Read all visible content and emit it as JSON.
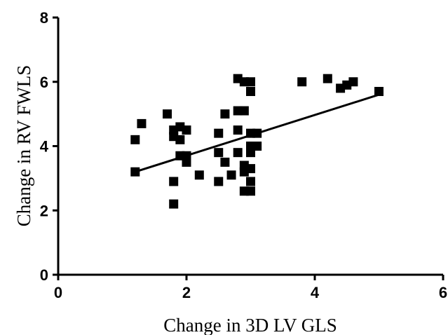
{
  "chart_data": {
    "type": "scatter",
    "title": "",
    "xlabel": "Change in 3D LV GLS",
    "ylabel": "Change in RV FWLS",
    "xlim": [
      0,
      6
    ],
    "ylim": [
      0,
      8
    ],
    "xticks": [
      "0",
      "2",
      "4",
      "6"
    ],
    "yticks": [
      "0",
      "2",
      "4",
      "6",
      "8"
    ],
    "grid": false,
    "legend": "none",
    "marker": "square",
    "marker_color": "#000000",
    "points": [
      {
        "x": 1.2,
        "y": 3.2
      },
      {
        "x": 1.2,
        "y": 4.2
      },
      {
        "x": 1.3,
        "y": 4.7
      },
      {
        "x": 1.7,
        "y": 5.0
      },
      {
        "x": 1.8,
        "y": 4.5
      },
      {
        "x": 1.8,
        "y": 4.3
      },
      {
        "x": 1.8,
        "y": 2.9
      },
      {
        "x": 1.8,
        "y": 2.2
      },
      {
        "x": 1.9,
        "y": 4.6
      },
      {
        "x": 1.9,
        "y": 4.2
      },
      {
        "x": 1.9,
        "y": 3.7
      },
      {
        "x": 2.0,
        "y": 4.5
      },
      {
        "x": 2.0,
        "y": 3.7
      },
      {
        "x": 2.0,
        "y": 3.5
      },
      {
        "x": 2.2,
        "y": 3.1
      },
      {
        "x": 2.5,
        "y": 4.4
      },
      {
        "x": 2.5,
        "y": 3.8
      },
      {
        "x": 2.5,
        "y": 2.9
      },
      {
        "x": 2.6,
        "y": 5.0
      },
      {
        "x": 2.6,
        "y": 3.5
      },
      {
        "x": 2.7,
        "y": 3.1
      },
      {
        "x": 2.8,
        "y": 6.1
      },
      {
        "x": 2.8,
        "y": 5.1
      },
      {
        "x": 2.8,
        "y": 4.5
      },
      {
        "x": 2.8,
        "y": 3.8
      },
      {
        "x": 2.9,
        "y": 6.0
      },
      {
        "x": 2.9,
        "y": 5.1
      },
      {
        "x": 2.9,
        "y": 3.4
      },
      {
        "x": 2.9,
        "y": 3.2
      },
      {
        "x": 2.9,
        "y": 2.6
      },
      {
        "x": 3.0,
        "y": 6.0
      },
      {
        "x": 3.0,
        "y": 5.7
      },
      {
        "x": 3.0,
        "y": 4.4
      },
      {
        "x": 3.0,
        "y": 4.0
      },
      {
        "x": 3.0,
        "y": 3.8
      },
      {
        "x": 3.0,
        "y": 3.3
      },
      {
        "x": 3.0,
        "y": 2.9
      },
      {
        "x": 3.0,
        "y": 2.6
      },
      {
        "x": 3.1,
        "y": 4.4
      },
      {
        "x": 3.1,
        "y": 4.0
      },
      {
        "x": 3.8,
        "y": 6.0
      },
      {
        "x": 4.2,
        "y": 6.1
      },
      {
        "x": 4.4,
        "y": 5.8
      },
      {
        "x": 4.5,
        "y": 5.9
      },
      {
        "x": 4.6,
        "y": 6.0
      },
      {
        "x": 5.0,
        "y": 5.7
      }
    ],
    "fit_line": {
      "x": [
        1.2,
        5.0
      ],
      "y": [
        3.2,
        5.6
      ]
    }
  }
}
